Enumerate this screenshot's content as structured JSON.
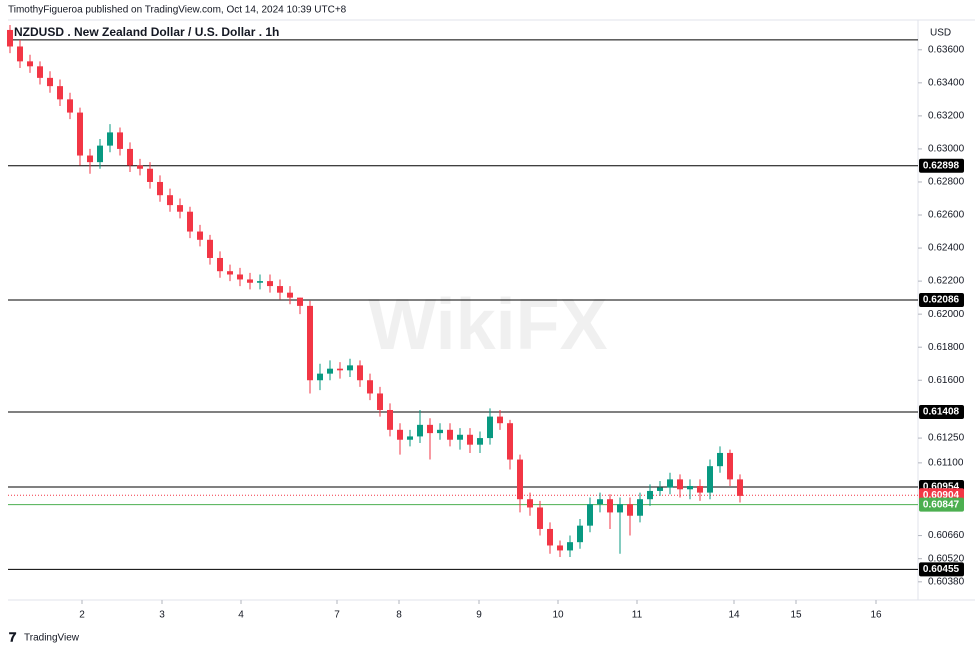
{
  "chart_data": {
    "type": "candlestick",
    "publisher": "TimothyFigueroa published on TradingView.com, Oct 14, 2024 10:39 UTC+8",
    "title": "NZDUSD . New Zealand Dollar / U.S. Dollar . 1h",
    "currency": "USD",
    "brand": "TradingView",
    "watermark": "WikiFX",
    "up_color": "#089981",
    "down_color": "#f23645",
    "open": [
      0.6372,
      0.6362,
      0.6353,
      0.635,
      0.6343,
      0.6338,
      0.633,
      0.6322,
      0.6296,
      0.6292,
      0.6302,
      0.631,
      0.63,
      0.629,
      0.6288,
      0.628,
      0.6272,
      0.6266,
      0.6262,
      0.625,
      0.6245,
      0.6234,
      0.6226,
      0.6224,
      0.6221,
      0.6219,
      0.622,
      0.6217,
      0.6213,
      0.621,
      0.6205,
      0.616,
      0.6164,
      0.6167,
      0.6166,
      0.6169,
      0.616,
      0.6152,
      0.6142,
      0.613,
      0.6124,
      0.6126,
      0.6133,
      0.6128,
      0.613,
      0.6124,
      0.6127,
      0.6121,
      0.6125,
      0.6138,
      0.6134,
      0.6112,
      0.6088,
      0.6083,
      0.607,
      0.606,
      0.6057,
      0.6062,
      0.6072,
      0.6085,
      0.6088,
      0.608,
      0.6085,
      0.6078,
      0.6088,
      0.6093,
      0.6095,
      0.61,
      0.6094,
      0.6096,
      0.6092,
      0.6108,
      0.6116,
      0.61
    ],
    "high": [
      0.6375,
      0.6366,
      0.6357,
      0.6353,
      0.6347,
      0.6342,
      0.6334,
      0.6325,
      0.63,
      0.6306,
      0.6315,
      0.6313,
      0.6304,
      0.6294,
      0.6292,
      0.6284,
      0.6276,
      0.627,
      0.6265,
      0.6254,
      0.6248,
      0.6238,
      0.623,
      0.6228,
      0.6225,
      0.6224,
      0.6224,
      0.6221,
      0.6217,
      0.621,
      0.6208,
      0.617,
      0.6172,
      0.6171,
      0.6173,
      0.6172,
      0.6164,
      0.6156,
      0.6146,
      0.6134,
      0.613,
      0.6142,
      0.6137,
      0.6134,
      0.6134,
      0.6131,
      0.6131,
      0.6129,
      0.6143,
      0.6142,
      0.6136,
      0.6115,
      0.6092,
      0.6087,
      0.6074,
      0.6063,
      0.6066,
      0.6076,
      0.6089,
      0.6092,
      0.6091,
      0.6089,
      0.6089,
      0.6092,
      0.6097,
      0.6099,
      0.6104,
      0.6103,
      0.61,
      0.61,
      0.6112,
      0.612,
      0.6118,
      0.6103
    ],
    "low": [
      0.6358,
      0.6349,
      0.6346,
      0.6339,
      0.6334,
      0.6326,
      0.6318,
      0.629,
      0.6285,
      0.6288,
      0.6298,
      0.6296,
      0.6286,
      0.6284,
      0.6276,
      0.6268,
      0.6262,
      0.6258,
      0.6246,
      0.6241,
      0.623,
      0.6222,
      0.622,
      0.6217,
      0.6215,
      0.6215,
      0.6213,
      0.6209,
      0.6206,
      0.62,
      0.6152,
      0.6154,
      0.616,
      0.6161,
      0.6162,
      0.6156,
      0.6148,
      0.6138,
      0.6126,
      0.6115,
      0.612,
      0.6122,
      0.6112,
      0.6124,
      0.612,
      0.6118,
      0.6116,
      0.6116,
      0.6121,
      0.613,
      0.6106,
      0.608,
      0.6078,
      0.6066,
      0.6055,
      0.6053,
      0.6053,
      0.6058,
      0.6068,
      0.608,
      0.607,
      0.6055,
      0.6066,
      0.6074,
      0.6084,
      0.609,
      0.6091,
      0.6089,
      0.6088,
      0.6087,
      0.6088,
      0.6104,
      0.6096,
      0.6086
    ],
    "close": [
      0.6362,
      0.6353,
      0.635,
      0.6343,
      0.6338,
      0.633,
      0.6322,
      0.6296,
      0.6292,
      0.6302,
      0.631,
      0.63,
      0.629,
      0.6288,
      0.628,
      0.6272,
      0.6266,
      0.6262,
      0.625,
      0.6245,
      0.6234,
      0.6226,
      0.6224,
      0.6221,
      0.6219,
      0.622,
      0.6217,
      0.6213,
      0.621,
      0.6205,
      0.616,
      0.6164,
      0.6167,
      0.6166,
      0.6169,
      0.616,
      0.6152,
      0.6142,
      0.613,
      0.6124,
      0.6126,
      0.6133,
      0.6128,
      0.613,
      0.6124,
      0.6127,
      0.6121,
      0.6125,
      0.6138,
      0.6134,
      0.6112,
      0.6088,
      0.6083,
      0.607,
      0.606,
      0.6057,
      0.6062,
      0.6072,
      0.6085,
      0.6088,
      0.608,
      0.6085,
      0.6078,
      0.6088,
      0.6093,
      0.6095,
      0.61,
      0.6094,
      0.6096,
      0.6092,
      0.6108,
      0.6116,
      0.61,
      0.609
    ],
    "xlim": [
      -0.2,
      90.8
    ],
    "xticks": [
      {
        "value": 7.2,
        "label": "2"
      },
      {
        "value": 15.2,
        "label": "3"
      },
      {
        "value": 23.1,
        "label": "4"
      },
      {
        "value": 32.7,
        "label": "7"
      },
      {
        "value": 38.9,
        "label": "8"
      },
      {
        "value": 46.9,
        "label": "9"
      },
      {
        "value": 54.8,
        "label": "10"
      },
      {
        "value": 62.7,
        "label": "11"
      },
      {
        "value": 72.4,
        "label": "14"
      },
      {
        "value": 78.6,
        "label": "15"
      },
      {
        "value": 86.6,
        "label": "16"
      }
    ],
    "ylim": [
      0.6027,
      0.6375
    ],
    "yticks": [
      {
        "value": 0.636,
        "label": "0.63600"
      },
      {
        "value": 0.634,
        "label": "0.63400"
      },
      {
        "value": 0.632,
        "label": "0.63200"
      },
      {
        "value": 0.63,
        "label": "0.63000"
      },
      {
        "value": 0.628,
        "label": "0.62800"
      },
      {
        "value": 0.626,
        "label": "0.62600"
      },
      {
        "value": 0.624,
        "label": "0.62400"
      },
      {
        "value": 0.622,
        "label": "0.62200"
      },
      {
        "value": 0.62,
        "label": "0.62000"
      },
      {
        "value": 0.618,
        "label": "0.61800"
      },
      {
        "value": 0.616,
        "label": "0.61600"
      },
      {
        "value": 0.6125,
        "label": "0.61250"
      },
      {
        "value": 0.611,
        "label": "0.61100"
      },
      {
        "value": 0.6066,
        "label": "0.60660"
      },
      {
        "value": 0.6052,
        "label": "0.60520"
      },
      {
        "value": 0.6038,
        "label": "0.60380"
      }
    ],
    "top_level": 0.6366,
    "levels": [
      {
        "value": 0.62898,
        "label": "0.62898"
      },
      {
        "value": 0.62086,
        "label": "0.62086"
      },
      {
        "value": 0.61408,
        "label": "0.61408"
      },
      {
        "value": 0.60954,
        "label": "0.60954"
      },
      {
        "value": 0.60455,
        "label": "0.60455"
      }
    ],
    "last_price": {
      "value": 0.60904,
      "label": "0.60904",
      "color": "#f23645"
    },
    "green_line": {
      "value": 0.60847,
      "label": "0.60847",
      "color": "#4caf50"
    }
  }
}
